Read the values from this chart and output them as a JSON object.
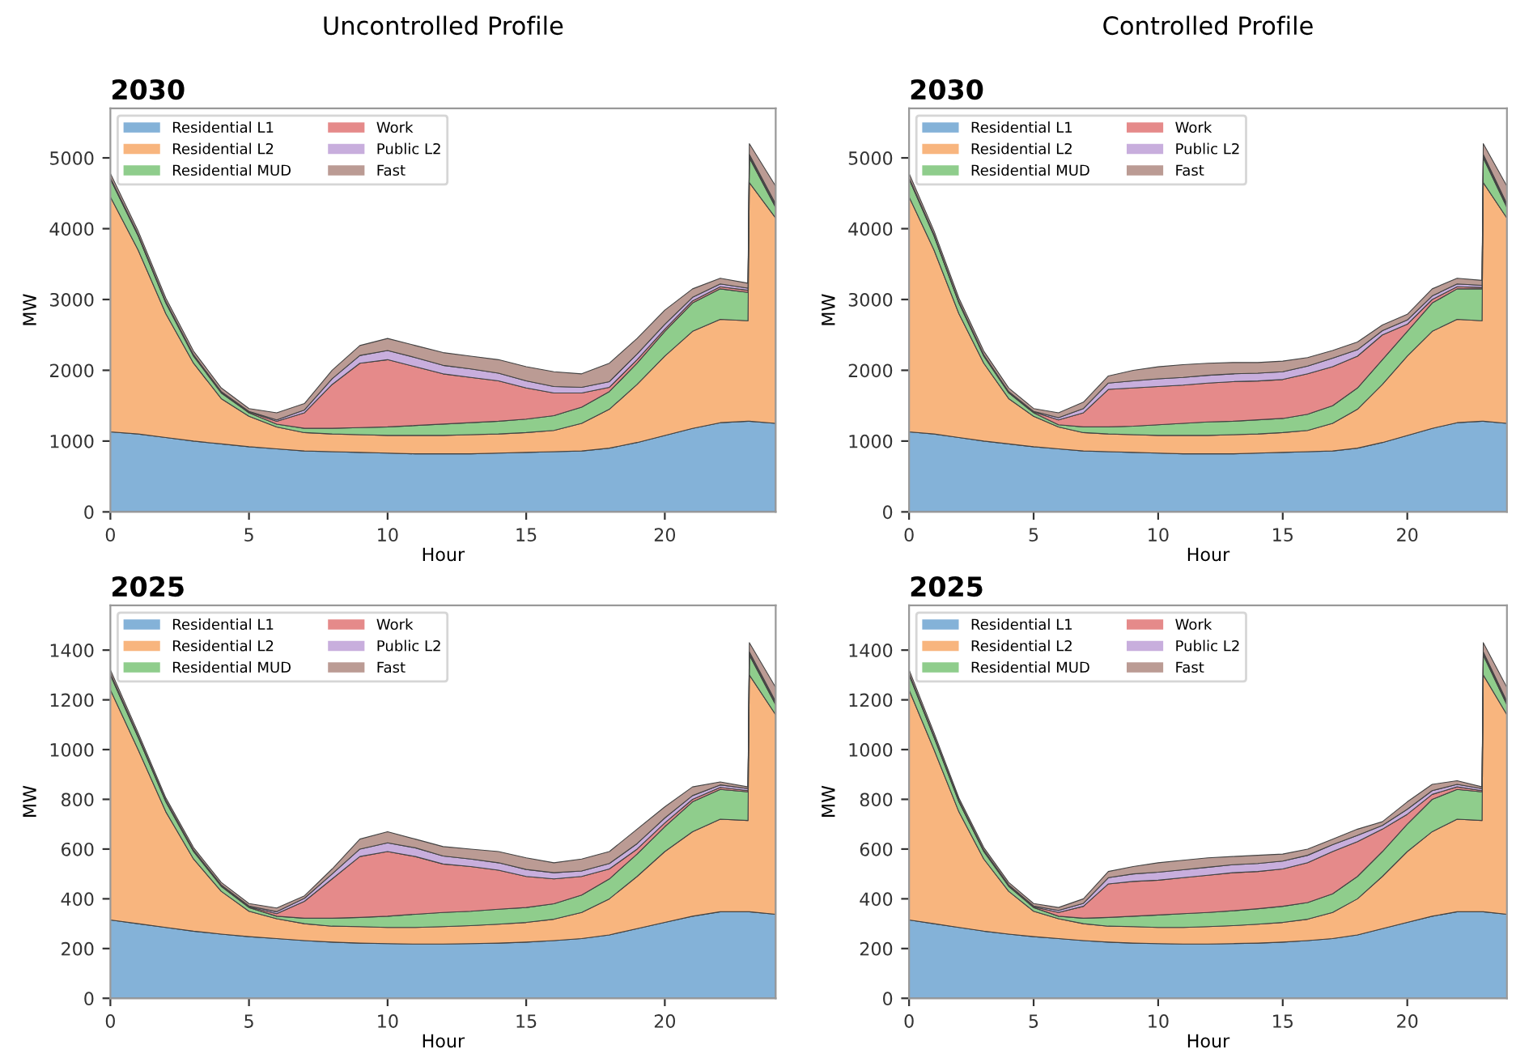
{
  "chart_data": [
    {
      "type": "area",
      "stacked": true,
      "title": "2030",
      "annotations": [
        "Uncontrolled Profile"
      ],
      "xlabel": "Hour",
      "ylabel": "MW",
      "xlim": [
        0,
        24
      ],
      "xticks": [
        0,
        5,
        10,
        15,
        20
      ],
      "ylim": [
        0,
        5700
      ],
      "yticks": [
        0,
        1000,
        2000,
        3000,
        4000,
        5000
      ],
      "legend": "top left",
      "x": [
        0,
        1,
        2,
        3,
        4,
        5,
        6,
        7,
        8,
        9,
        10,
        11,
        12,
        13,
        14,
        15,
        16,
        17,
        18,
        19,
        20,
        21,
        22,
        23,
        23.05,
        24
      ],
      "series": [
        {
          "name": "Residential L1",
          "color": "#84b2d8",
          "values": [
            1130,
            1100,
            1050,
            1000,
            960,
            920,
            890,
            860,
            850,
            840,
            830,
            820,
            820,
            820,
            830,
            840,
            850,
            860,
            900,
            980,
            1080,
            1180,
            1260,
            1280,
            1280,
            1250
          ]
        },
        {
          "name": "Residential L2",
          "color": "#f8b57e",
          "values": [
            3320,
            2600,
            1750,
            1100,
            640,
            430,
            310,
            260,
            250,
            250,
            250,
            260,
            260,
            270,
            270,
            280,
            300,
            390,
            550,
            820,
            1120,
            1370,
            1460,
            1420,
            3370,
            2900
          ]
        },
        {
          "name": "Residential MUD",
          "color": "#8fcd8c",
          "values": [
            250,
            200,
            150,
            100,
            80,
            50,
            40,
            60,
            80,
            100,
            120,
            140,
            160,
            170,
            180,
            190,
            210,
            230,
            250,
            300,
            350,
            400,
            430,
            400,
            350,
            150
          ]
        },
        {
          "name": "Work",
          "color": "#e58a8a",
          "values": [
            10,
            10,
            10,
            10,
            10,
            10,
            40,
            220,
            620,
            910,
            950,
            830,
            710,
            640,
            570,
            440,
            320,
            200,
            60,
            50,
            30,
            30,
            30,
            30,
            20,
            20
          ]
        },
        {
          "name": "Public L2",
          "color": "#c8aedd",
          "values": [
            10,
            10,
            10,
            10,
            10,
            10,
            20,
            40,
            80,
            110,
            130,
            130,
            120,
            120,
            110,
            100,
            90,
            80,
            80,
            80,
            70,
            50,
            40,
            30,
            30,
            30
          ]
        },
        {
          "name": "Fast",
          "color": "#bb9b94",
          "values": [
            60,
            50,
            50,
            50,
            50,
            40,
            100,
            90,
            120,
            140,
            170,
            170,
            180,
            180,
            190,
            200,
            210,
            190,
            260,
            220,
            200,
            120,
            80,
            70,
            150,
            250
          ]
        }
      ]
    },
    {
      "type": "area",
      "stacked": true,
      "title": "2030",
      "annotations": [
        "Controlled Profile"
      ],
      "xlabel": "Hour",
      "ylabel": "MW",
      "xlim": [
        0,
        24
      ],
      "xticks": [
        0,
        5,
        10,
        15,
        20
      ],
      "ylim": [
        0,
        5700
      ],
      "yticks": [
        0,
        1000,
        2000,
        3000,
        4000,
        5000
      ],
      "legend": "top left",
      "x": [
        0,
        1,
        2,
        3,
        4,
        5,
        6,
        7,
        8,
        9,
        10,
        11,
        12,
        13,
        14,
        15,
        16,
        17,
        18,
        19,
        20,
        21,
        22,
        23,
        23.05,
        24
      ],
      "series": [
        {
          "name": "Residential L1",
          "color": "#84b2d8",
          "values": [
            1130,
            1100,
            1050,
            1000,
            960,
            920,
            890,
            860,
            850,
            840,
            830,
            820,
            820,
            820,
            830,
            840,
            850,
            860,
            900,
            980,
            1080,
            1180,
            1260,
            1280,
            1280,
            1250
          ]
        },
        {
          "name": "Residential L2",
          "color": "#f8b57e",
          "values": [
            3320,
            2600,
            1750,
            1100,
            640,
            430,
            310,
            260,
            250,
            250,
            250,
            260,
            260,
            270,
            270,
            280,
            300,
            390,
            550,
            820,
            1120,
            1370,
            1460,
            1420,
            3370,
            2900
          ]
        },
        {
          "name": "Residential MUD",
          "color": "#8fcd8c",
          "values": [
            250,
            200,
            150,
            100,
            80,
            50,
            30,
            80,
            100,
            120,
            150,
            170,
            190,
            190,
            200,
            200,
            230,
            250,
            300,
            350,
            350,
            400,
            430,
            450,
            350,
            150
          ]
        },
        {
          "name": "Work",
          "color": "#e58a8a",
          "values": [
            10,
            10,
            10,
            10,
            10,
            10,
            70,
            200,
            530,
            540,
            540,
            540,
            550,
            560,
            550,
            550,
            570,
            550,
            450,
            350,
            100,
            50,
            30,
            20,
            20,
            20
          ]
        },
        {
          "name": "Public L2",
          "color": "#c8aedd",
          "values": [
            10,
            10,
            10,
            10,
            10,
            10,
            30,
            60,
            90,
            100,
            110,
            110,
            110,
            110,
            110,
            110,
            110,
            120,
            90,
            60,
            60,
            50,
            40,
            30,
            30,
            30
          ]
        },
        {
          "name": "Fast",
          "color": "#bb9b94",
          "values": [
            60,
            50,
            50,
            50,
            50,
            40,
            70,
            90,
            100,
            150,
            170,
            180,
            170,
            160,
            150,
            150,
            120,
            110,
            110,
            80,
            80,
            100,
            80,
            70,
            150,
            250
          ]
        }
      ]
    },
    {
      "type": "area",
      "stacked": true,
      "title": "2025",
      "xlabel": "Hour",
      "ylabel": "MW",
      "xlim": [
        0,
        24
      ],
      "xticks": [
        0,
        5,
        10,
        15,
        20
      ],
      "ylim": [
        0,
        1580
      ],
      "yticks": [
        0,
        200,
        400,
        600,
        800,
        1000,
        1200,
        1400
      ],
      "legend": "top left",
      "x": [
        0,
        1,
        2,
        3,
        4,
        5,
        6,
        7,
        8,
        9,
        10,
        11,
        12,
        13,
        14,
        15,
        16,
        17,
        18,
        19,
        20,
        21,
        22,
        23,
        23.05,
        24
      ],
      "series": [
        {
          "name": "Residential L1",
          "color": "#84b2d8",
          "values": [
            315,
            300,
            285,
            270,
            258,
            248,
            240,
            232,
            226,
            222,
            220,
            218,
            218,
            220,
            222,
            226,
            232,
            240,
            255,
            280,
            305,
            330,
            348,
            348,
            348,
            338
          ]
        },
        {
          "name": "Residential L2",
          "color": "#f8b57e",
          "values": [
            925,
            700,
            465,
            290,
            172,
            102,
            80,
            68,
            64,
            66,
            65,
            67,
            70,
            72,
            76,
            79,
            86,
            105,
            145,
            210,
            285,
            340,
            372,
            367,
            952,
            802
          ]
        },
        {
          "name": "Residential MUD",
          "color": "#8fcd8c",
          "values": [
            60,
            50,
            40,
            30,
            20,
            15,
            10,
            22,
            32,
            37,
            45,
            53,
            57,
            58,
            60,
            60,
            62,
            70,
            80,
            90,
            100,
            120,
            120,
            115,
            80,
            40
          ]
        },
        {
          "name": "Work",
          "color": "#e58a8a",
          "values": [
            3,
            3,
            3,
            3,
            3,
            3,
            10,
            68,
            158,
            245,
            260,
            232,
            195,
            180,
            157,
            125,
            100,
            75,
            40,
            20,
            15,
            10,
            8,
            5,
            5,
            5
          ]
        },
        {
          "name": "Public L2",
          "color": "#c8aedd",
          "values": [
            3,
            3,
            3,
            3,
            3,
            3,
            8,
            12,
            20,
            30,
            35,
            35,
            32,
            30,
            30,
            28,
            25,
            22,
            22,
            22,
            20,
            15,
            10,
            8,
            8,
            8
          ]
        },
        {
          "name": "Fast",
          "color": "#bb9b94",
          "values": [
            15,
            12,
            10,
            10,
            10,
            10,
            15,
            10,
            20,
            40,
            45,
            35,
            38,
            40,
            45,
            47,
            40,
            48,
            48,
            58,
            45,
            35,
            12,
            7,
            37,
            57
          ]
        }
      ]
    },
    {
      "type": "area",
      "stacked": true,
      "title": "2025",
      "xlabel": "Hour",
      "ylabel": "MW",
      "xlim": [
        0,
        24
      ],
      "xticks": [
        0,
        5,
        10,
        15,
        20
      ],
      "ylim": [
        0,
        1580
      ],
      "yticks": [
        0,
        200,
        400,
        600,
        800,
        1000,
        1200,
        1400
      ],
      "legend": "top left",
      "x": [
        0,
        1,
        2,
        3,
        4,
        5,
        6,
        7,
        8,
        9,
        10,
        11,
        12,
        13,
        14,
        15,
        16,
        17,
        18,
        19,
        20,
        21,
        22,
        23,
        23.05,
        24
      ],
      "series": [
        {
          "name": "Residential L1",
          "color": "#84b2d8",
          "values": [
            315,
            300,
            285,
            270,
            258,
            248,
            240,
            232,
            226,
            222,
            220,
            218,
            218,
            220,
            222,
            226,
            232,
            240,
            255,
            280,
            305,
            330,
            348,
            348,
            348,
            338
          ]
        },
        {
          "name": "Residential L2",
          "color": "#f8b57e",
          "values": [
            925,
            700,
            465,
            290,
            172,
            102,
            80,
            68,
            64,
            66,
            65,
            67,
            70,
            72,
            76,
            79,
            86,
            105,
            145,
            210,
            285,
            340,
            372,
            367,
            952,
            802
          ]
        },
        {
          "name": "Residential MUD",
          "color": "#8fcd8c",
          "values": [
            60,
            50,
            40,
            30,
            20,
            15,
            10,
            22,
            35,
            42,
            50,
            55,
            57,
            60,
            62,
            65,
            67,
            75,
            90,
            100,
            110,
            130,
            120,
            115,
            80,
            40
          ]
        },
        {
          "name": "Work",
          "color": "#e58a8a",
          "values": [
            3,
            3,
            3,
            3,
            3,
            3,
            15,
            48,
            135,
            140,
            140,
            145,
            150,
            153,
            150,
            150,
            160,
            170,
            140,
            90,
            40,
            20,
            10,
            5,
            5,
            5
          ]
        },
        {
          "name": "Public L2",
          "color": "#c8aedd",
          "values": [
            3,
            3,
            3,
            3,
            3,
            3,
            8,
            12,
            25,
            30,
            32,
            32,
            32,
            32,
            32,
            32,
            30,
            28,
            25,
            15,
            20,
            15,
            10,
            8,
            8,
            8
          ]
        },
        {
          "name": "Fast",
          "color": "#bb9b94",
          "values": [
            15,
            12,
            10,
            10,
            10,
            10,
            12,
            18,
            25,
            30,
            38,
            38,
            38,
            33,
            33,
            28,
            25,
            22,
            25,
            15,
            30,
            25,
            15,
            7,
            37,
            57
          ]
        }
      ]
    }
  ]
}
